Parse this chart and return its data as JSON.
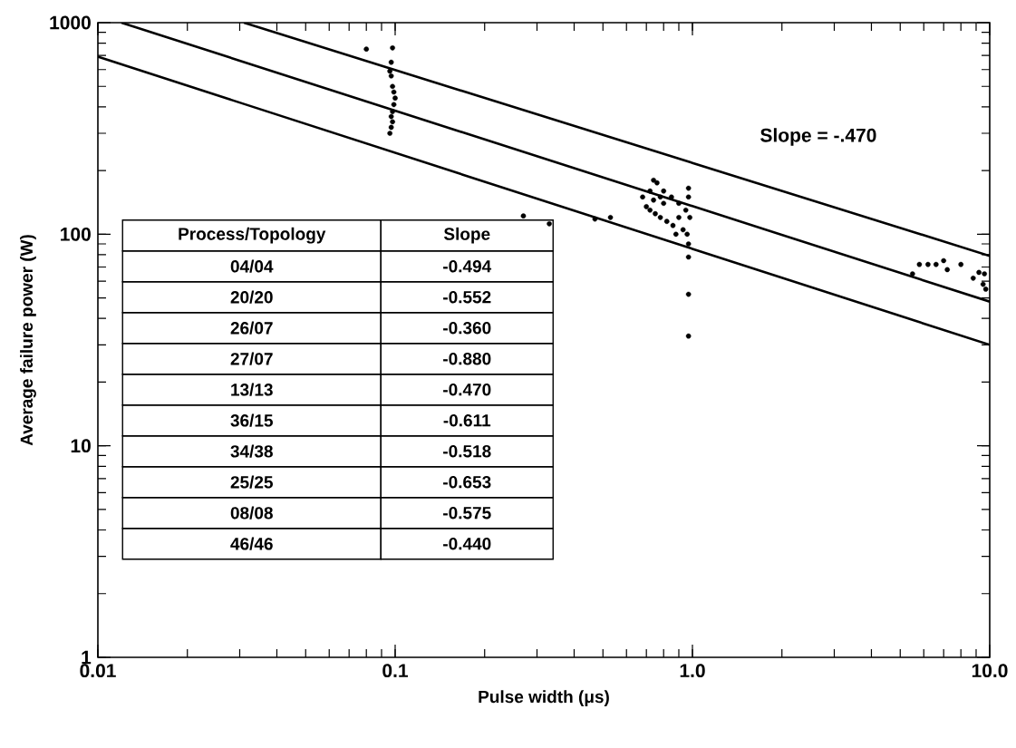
{
  "chart_data": {
    "type": "scatter",
    "xlabel": "Pulse width (μs)",
    "ylabel": "Average failure power (W)",
    "log": "xy",
    "grid": false,
    "xlim": [
      0.01,
      10
    ],
    "ylim": [
      1,
      1000
    ],
    "xticks": [
      0.01,
      0.1,
      {
        "value": 1,
        "label": "1.0"
      },
      {
        "value": 10,
        "label": "10.0"
      }
    ],
    "yticks": [
      1,
      10,
      100,
      1000
    ],
    "series": [
      {
        "type": "scatter",
        "marker": "circle",
        "color": "#000000",
        "x": [
          0.08,
          0.098,
          0.097,
          0.096,
          0.097,
          0.098,
          0.099,
          0.1,
          0.099,
          0.098,
          0.097,
          0.098,
          0.097,
          0.096,
          0.27,
          0.33,
          0.47,
          0.53,
          0.68,
          0.72,
          0.74,
          0.76,
          0.78,
          0.8,
          0.72,
          0.75,
          0.78,
          0.82,
          0.86,
          0.9,
          0.7,
          0.74,
          0.8,
          0.85,
          0.9,
          0.95,
          0.97,
          0.97,
          0.98,
          0.96,
          0.97,
          0.97,
          0.97,
          0.97,
          0.88,
          0.93,
          5.5,
          5.8,
          6.2,
          6.6,
          7.0,
          7.2,
          8.0,
          8.8,
          9.2,
          9.5,
          9.6,
          9.7
        ],
        "values": [
          750,
          760,
          650,
          590,
          560,
          500,
          470,
          440,
          410,
          380,
          360,
          340,
          320,
          300,
          122,
          112,
          118,
          120,
          150,
          160,
          180,
          175,
          150,
          140,
          130,
          125,
          120,
          115,
          110,
          120,
          135,
          145,
          160,
          150,
          140,
          130,
          165,
          150,
          120,
          100,
          90,
          78,
          52,
          33,
          100,
          105,
          65,
          72,
          72,
          72,
          75,
          68,
          72,
          62,
          66,
          58,
          65,
          55
        ]
      },
      {
        "type": "line",
        "marker": "none",
        "color": "#000000",
        "x": [
          0.031,
          10
        ],
        "values": [
          1000,
          79
        ]
      },
      {
        "type": "line",
        "marker": "none",
        "color": "#000000",
        "x": [
          0.012,
          10
        ],
        "values": [
          1000,
          48
        ]
      },
      {
        "type": "line",
        "marker": "none",
        "color": "#000000",
        "x": [
          0.01,
          10
        ],
        "values": [
          690,
          30
        ]
      }
    ],
    "annotations": [
      "Slope = -.470",
      "Process/Topology",
      "Slope",
      "04/04",
      "-0.494",
      "20/20",
      "-0.552",
      "26/07",
      "-0.360",
      "27/07",
      "-0.880",
      "13/13",
      "-0.470",
      "36/15",
      "-0.611",
      "34/38",
      "-0.518",
      "25/25",
      "-0.653",
      "08/08",
      "-0.575",
      "46/46",
      "-0.440"
    ]
  }
}
